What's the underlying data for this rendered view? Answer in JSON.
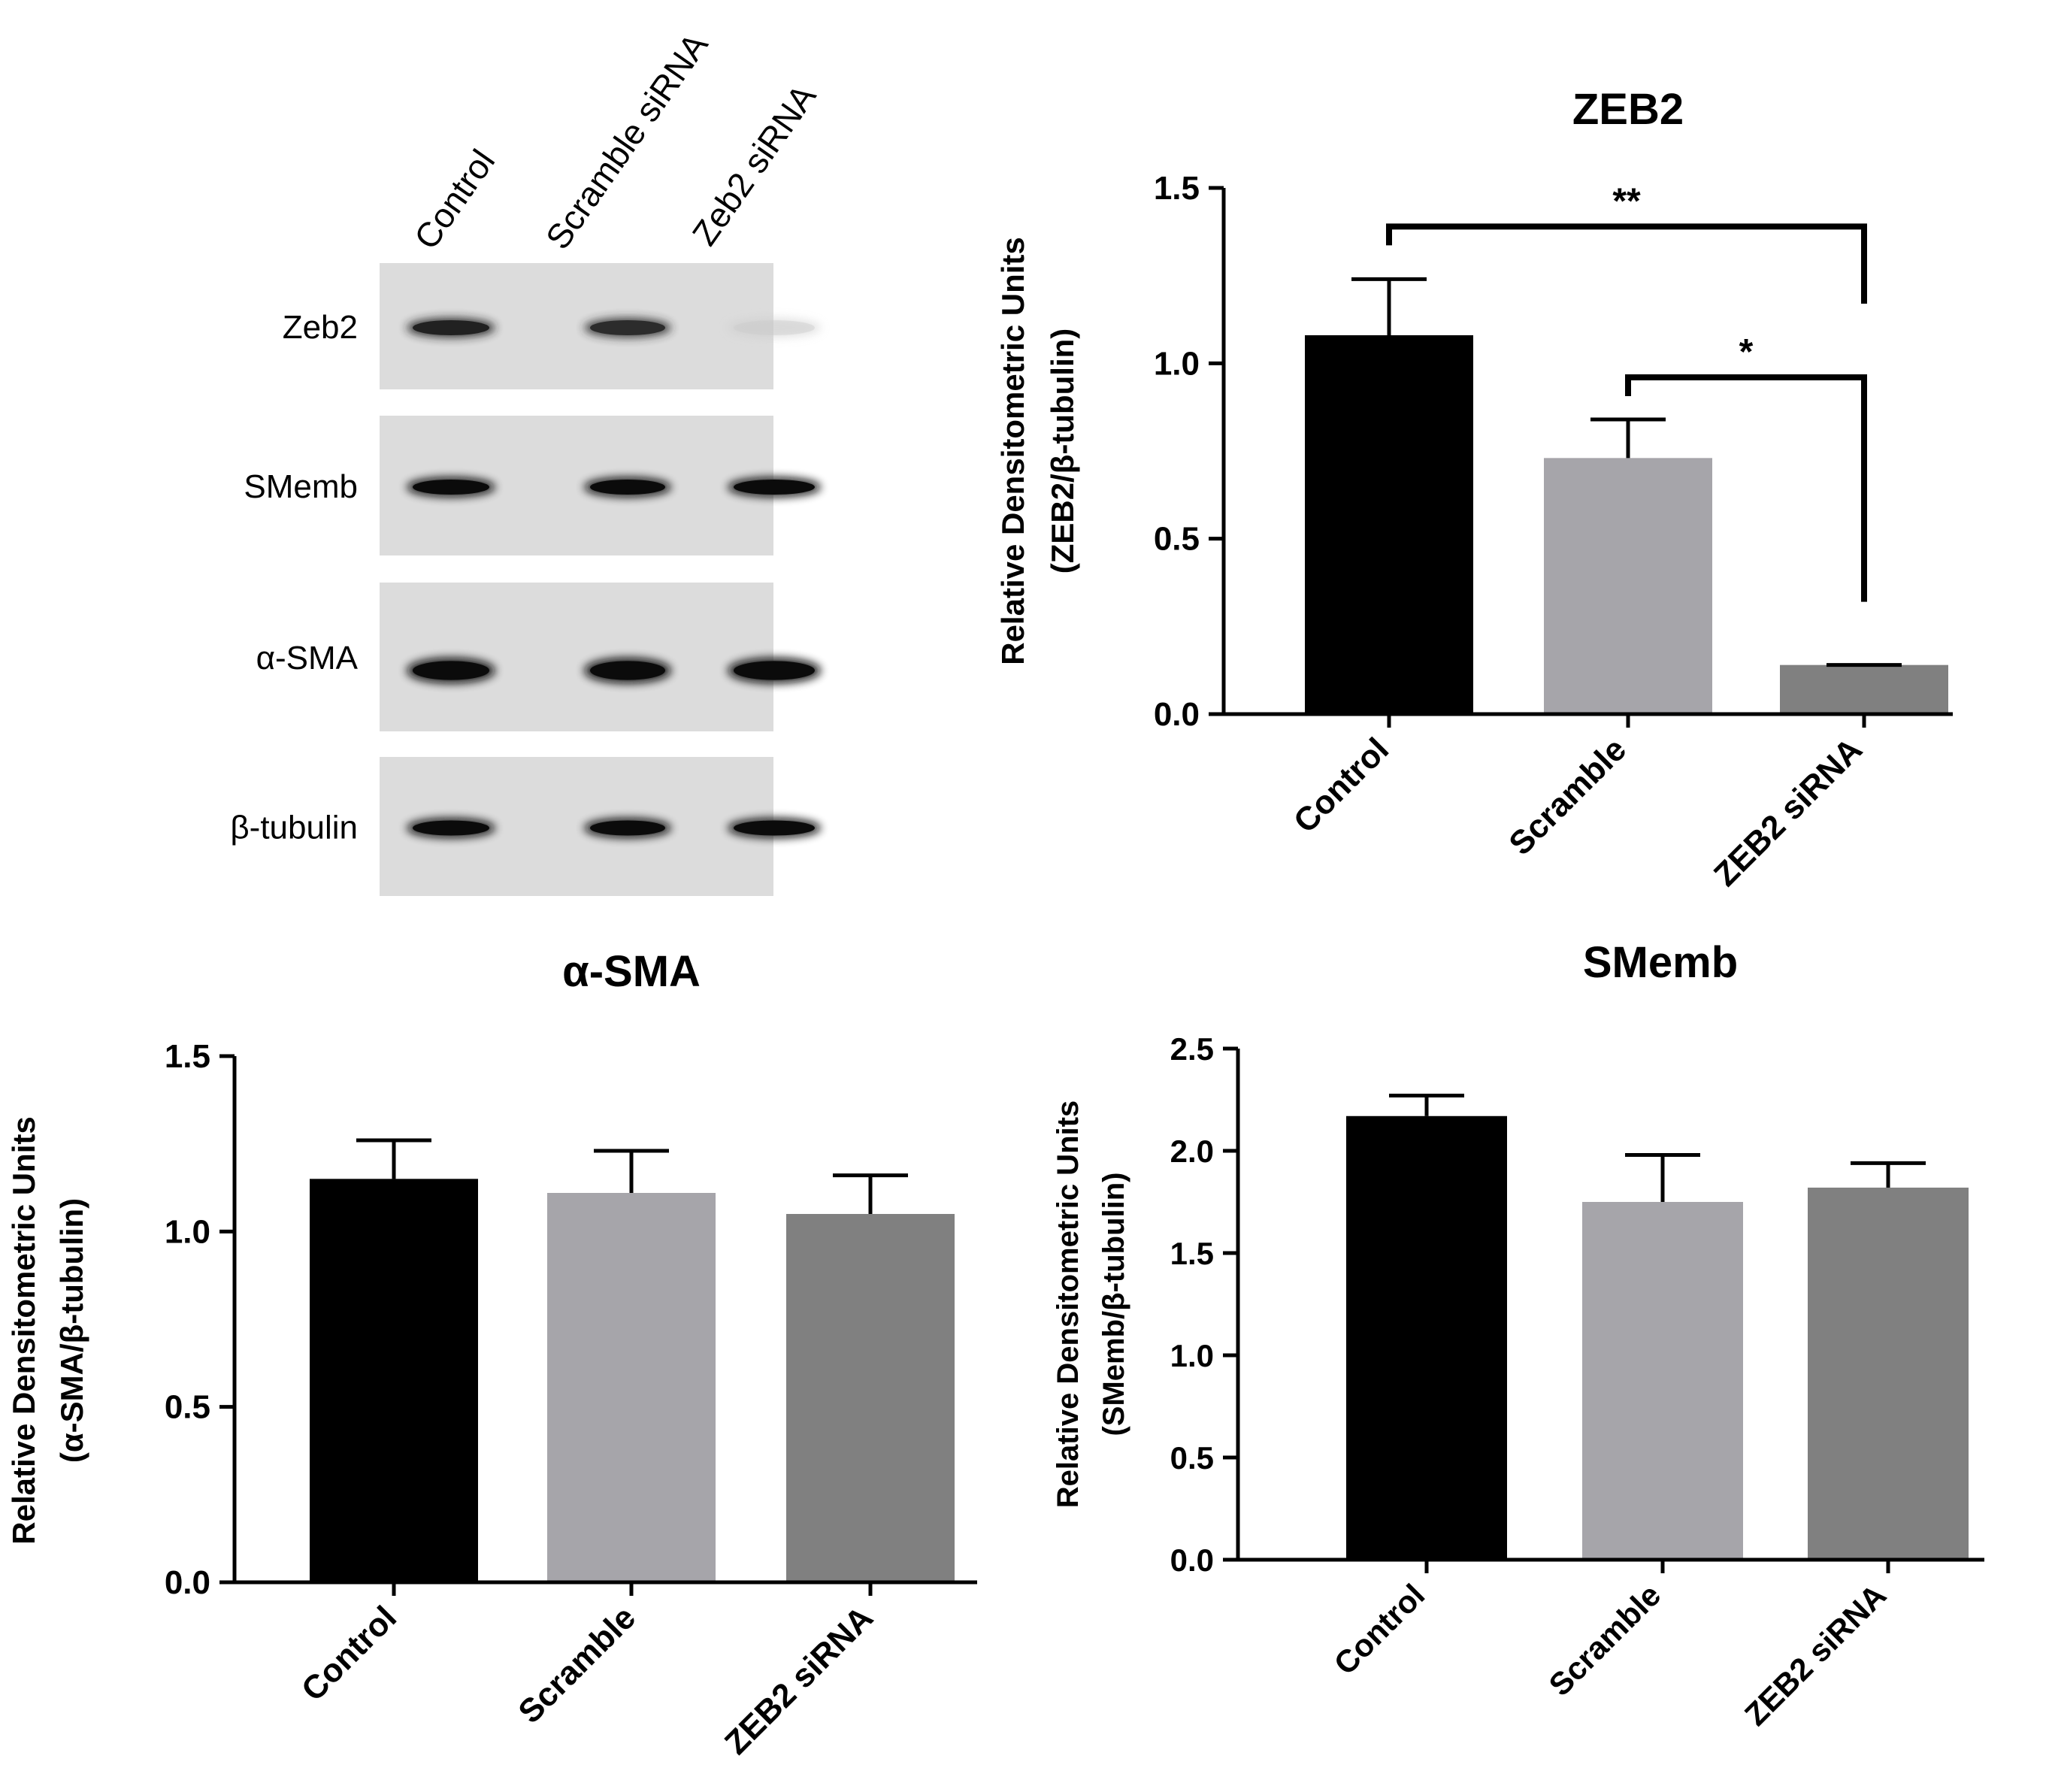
{
  "blot": {
    "lanes": [
      "Control",
      "Scramble siRNA",
      "Zeb2 siRNA"
    ],
    "rows": [
      {
        "label": "Zeb2",
        "band_intensity": [
          0.85,
          0.8,
          0.08
        ]
      },
      {
        "label": "SMemb",
        "band_intensity": [
          0.95,
          0.95,
          0.95
        ]
      },
      {
        "label": "α-SMA",
        "band_intensity": [
          0.95,
          0.95,
          0.95
        ]
      },
      {
        "label": "β-tubulin",
        "band_intensity": [
          0.95,
          0.95,
          0.95
        ]
      }
    ]
  },
  "colors": {
    "control": "#000000",
    "scramble": "#a6a5aa",
    "zeb2_sirna": "#808080",
    "axis": "#000000"
  },
  "chart_data": [
    {
      "type": "bar",
      "title": "ZEB2",
      "ylabel_line1": "Relative Densitometric Units",
      "ylabel_line2": "(ZEB2/β-tubulin)",
      "categories": [
        "Control",
        "Scramble",
        "ZEB2 siRNA"
      ],
      "values": [
        1.08,
        0.73,
        0.14
      ],
      "errors": [
        0.16,
        0.11,
        0.0
      ],
      "ylim": [
        0,
        1.5
      ],
      "yticks": [
        "0.0",
        "0.5",
        "1.0",
        "1.5"
      ],
      "ytick_values": [
        0,
        0.5,
        1.0,
        1.5
      ],
      "significance": [
        {
          "from": 0,
          "to": 2,
          "label": "**",
          "y": 1.39
        },
        {
          "from": 1,
          "to": 2,
          "label": "*",
          "y": 0.96
        }
      ]
    },
    {
      "type": "bar",
      "title": "α-SMA",
      "ylabel_line1": "Relative Densitometric Units",
      "ylabel_line2": "(α-SMA/β-tubulin)",
      "categories": [
        "Control",
        "Scramble",
        "ZEB2 siRNA"
      ],
      "values": [
        1.15,
        1.11,
        1.05
      ],
      "errors": [
        0.11,
        0.12,
        0.11
      ],
      "ylim": [
        0,
        1.5
      ],
      "yticks": [
        "0.0",
        "0.5",
        "1.0",
        "1.5"
      ],
      "ytick_values": [
        0,
        0.5,
        1.0,
        1.5
      ],
      "significance": []
    },
    {
      "type": "bar",
      "title": "SMemb",
      "ylabel_line1": "Relative Densitometric Units",
      "ylabel_line2": "(SMemb/β-tubulin)",
      "categories": [
        "Control",
        "Scramble",
        "ZEB2 siRNA"
      ],
      "values": [
        2.17,
        1.75,
        1.82
      ],
      "errors": [
        0.1,
        0.23,
        0.12
      ],
      "ylim": [
        0,
        2.5
      ],
      "yticks": [
        "0.0",
        "0.5",
        "1.0",
        "1.5",
        "2.0",
        "2.5"
      ],
      "ytick_values": [
        0,
        0.5,
        1.0,
        1.5,
        2.0,
        2.5
      ],
      "significance": []
    }
  ]
}
